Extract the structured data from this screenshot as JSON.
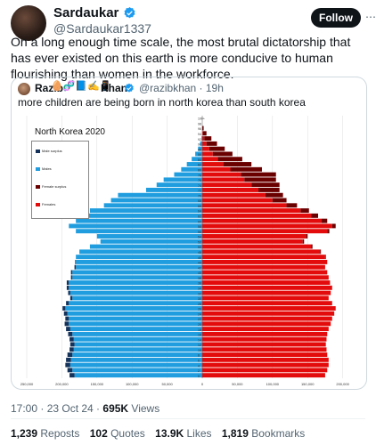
{
  "author": {
    "name": "Sardaukar",
    "handle": "@Sardaukar1337",
    "verified_icon": "verified-badge-icon",
    "follow_label": "Follow"
  },
  "tweet_text": "On a long enough time scale, the most brutal dictatorship that has ever existed on this earth is more conducive to human flourishing than women in the workforce.",
  "quoted": {
    "name": "Razib",
    "emojis": "🥚🧬📘✍📱",
    "name2": "Khan",
    "handle_time": "@razibkhan · 19h",
    "text": "more children are being born in north korea than south korea"
  },
  "chart_data": {
    "type": "bar",
    "title": "North Korea 2020",
    "legend": [
      "Male surplus",
      "Males",
      "Female surplus",
      "Females"
    ],
    "colors": {
      "males": "#1f9ddf",
      "females": "#e30b0b",
      "male_surplus": "#15325a",
      "female_surplus": "#6b0000"
    },
    "age_labels": [
      "100+",
      "98",
      "96",
      "94",
      "92",
      "90",
      "88",
      "86",
      "84",
      "82",
      "80",
      "78",
      "76",
      "74",
      "72",
      "70",
      "68",
      "66",
      "64",
      "62",
      "60",
      "58",
      "56",
      "54",
      "52",
      "50",
      "48",
      "46",
      "44",
      "42",
      "40",
      "38",
      "36",
      "34",
      "32",
      "30",
      "28",
      "26",
      "24",
      "22",
      "20",
      "18",
      "16",
      "14",
      "12",
      "10",
      "8",
      "6",
      "4",
      "2",
      "0"
    ],
    "x_tick_labels": [
      "250,000",
      "200,000",
      "150,000",
      "100,000",
      "50,000",
      "0",
      "50,000",
      "100,000",
      "150,000",
      "200,000",
      "250,000"
    ],
    "xlim": [
      -250000,
      250000
    ],
    "ages": [
      100,
      98,
      96,
      94,
      92,
      90,
      88,
      86,
      84,
      82,
      80,
      78,
      76,
      74,
      72,
      70,
      68,
      66,
      64,
      62,
      60,
      58,
      56,
      54,
      52,
      50,
      48,
      46,
      44,
      42,
      40,
      38,
      36,
      34,
      32,
      30,
      28,
      26,
      24,
      22,
      20,
      18,
      16,
      14,
      12,
      10,
      8,
      6,
      4,
      2,
      0
    ],
    "males": [
      0,
      0,
      0,
      0,
      1000,
      3000,
      6000,
      10000,
      15000,
      22000,
      30000,
      40000,
      55000,
      65000,
      80000,
      120000,
      130000,
      140000,
      160000,
      175000,
      180000,
      190000,
      180000,
      150000,
      145000,
      160000,
      175000,
      180000,
      180000,
      180000,
      185000,
      185000,
      190000,
      190000,
      188000,
      185000,
      190000,
      195000,
      192000,
      190000,
      190000,
      188000,
      185000,
      183000,
      182000,
      183000,
      185000,
      187000,
      188000,
      185000,
      182000
    ],
    "females": [
      0,
      0,
      0,
      1000,
      3000,
      6000,
      10000,
      15000,
      22000,
      30000,
      40000,
      55000,
      60000,
      70000,
      80000,
      90000,
      100000,
      120000,
      140000,
      155000,
      170000,
      185000,
      178000,
      148000,
      143000,
      155000,
      168000,
      175000,
      178000,
      175000,
      178000,
      180000,
      182000,
      185000,
      183000,
      180000,
      185000,
      190000,
      188000,
      185000,
      183000,
      180000,
      178000,
      177000,
      176000,
      177000,
      178000,
      180000,
      180000,
      178000,
      175000
    ],
    "female_surplus": [
      0,
      0,
      2000,
      5000,
      10000,
      15000,
      22000,
      28000,
      35000,
      40000,
      45000,
      50000,
      45000,
      40000,
      30000,
      25000,
      20000,
      15000,
      12000,
      10000,
      8000,
      5000,
      3000,
      2000,
      2000,
      2000,
      1000,
      1000,
      0,
      0,
      0,
      0,
      0,
      0,
      0,
      0,
      0,
      0,
      0,
      0,
      0,
      0,
      0,
      0,
      0,
      0,
      0,
      0,
      0,
      0,
      0
    ],
    "male_surplus": [
      0,
      0,
      0,
      0,
      0,
      0,
      0,
      0,
      0,
      0,
      0,
      0,
      0,
      0,
      0,
      0,
      0,
      0,
      0,
      0,
      0,
      0,
      0,
      0,
      0,
      0,
      0,
      0,
      1000,
      2000,
      2000,
      2000,
      3000,
      3000,
      3000,
      3000,
      4000,
      4000,
      5000,
      5000,
      6000,
      6000,
      6000,
      6000,
      6000,
      6000,
      7000,
      7000,
      7000,
      7000,
      7000
    ]
  },
  "footer": {
    "time": "17:00 · 23 Oct 24 · ",
    "views_count": "695K",
    "views_label": " Views"
  },
  "stats": {
    "reposts_count": "1,239",
    "reposts_label": " Reposts",
    "quotes_count": "102",
    "quotes_label": " Quotes",
    "likes_count": "13.9K",
    "likes_label": " Likes",
    "bookmarks_count": "1,819",
    "bookmarks_label": " Bookmarks"
  }
}
